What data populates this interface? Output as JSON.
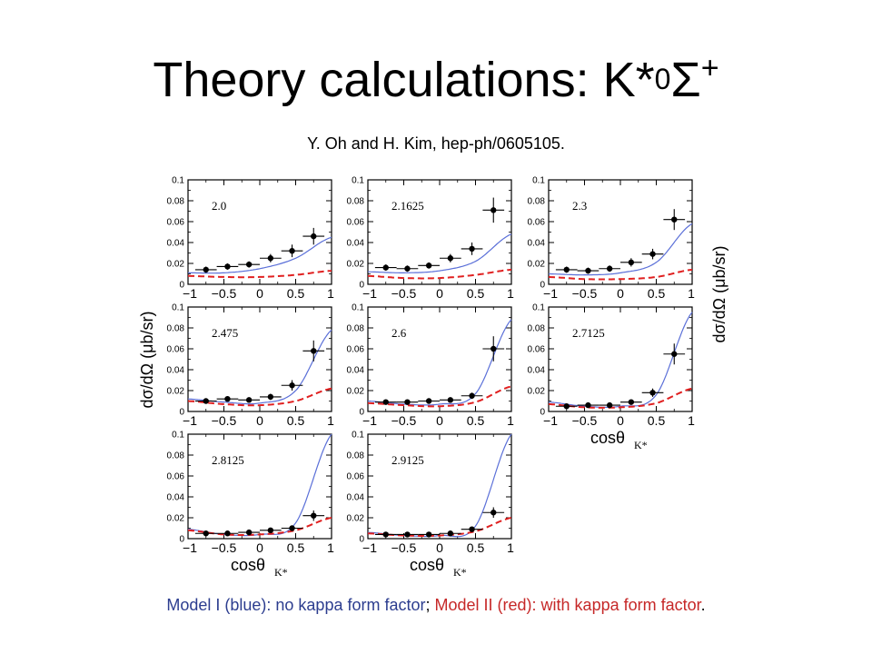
{
  "slide": {
    "title_main": "Theory calculations: K*",
    "title_sup": "0",
    "title_sigma": "Σ",
    "title_plus": "+",
    "citation": "Y. Oh and H. Kim, hep-ph/0605105.",
    "caption": {
      "part1": "Model I (blue): no kappa form factor",
      "sep": ";",
      "part2": "Model II (red): with kappa form factor",
      "end": "."
    }
  },
  "colors": {
    "model_I": "#5a6fd8",
    "model_II": "#e02020",
    "points": "#000000"
  },
  "axis_labels": {
    "y_left": "dσ/dΩ  (μb/sr)",
    "y_right": "dσ/dΩ  (μb/sr)",
    "x": "cosθ",
    "x_sub": "K*"
  },
  "chart_data": [
    {
      "type": "scatter",
      "label": "2.0",
      "xlim": [
        -1,
        1
      ],
      "ylim": [
        0,
        0.1
      ],
      "x_ticks": [
        "-1",
        "-0.5",
        "0",
        "0.5",
        "1"
      ],
      "y_ticks": [
        "0",
        "0.02",
        "0.04",
        "0.06",
        "0.08",
        "0.1"
      ],
      "points": {
        "x": [
          -0.75,
          -0.45,
          -0.15,
          0.15,
          0.45,
          0.75
        ],
        "y": [
          0.014,
          0.017,
          0.019,
          0.025,
          0.032,
          0.046
        ],
        "yerr": [
          0.003,
          0.003,
          0.003,
          0.004,
          0.006,
          0.008
        ]
      },
      "model_I": {
        "x": [
          -1,
          -0.5,
          0,
          0.5,
          1
        ],
        "y": [
          0.011,
          0.011,
          0.015,
          0.025,
          0.045
        ]
      },
      "model_II": {
        "x": [
          -1,
          -0.5,
          0,
          0.5,
          1
        ],
        "y": [
          0.008,
          0.007,
          0.007,
          0.009,
          0.013
        ]
      }
    },
    {
      "type": "scatter",
      "label": "2.1625",
      "xlim": [
        -1,
        1
      ],
      "ylim": [
        0,
        0.1
      ],
      "x_ticks": [
        "-1",
        "-0.5",
        "0",
        "0.5",
        "1"
      ],
      "y_ticks": [
        "0",
        "0.02",
        "0.04",
        "0.06",
        "0.08",
        "0.1"
      ],
      "points": {
        "x": [
          -0.75,
          -0.45,
          -0.15,
          0.15,
          0.45,
          0.75
        ],
        "y": [
          0.016,
          0.015,
          0.018,
          0.025,
          0.034,
          0.071
        ],
        "yerr": [
          0.003,
          0.003,
          0.003,
          0.004,
          0.006,
          0.012
        ]
      },
      "model_I": {
        "x": [
          -1,
          -0.5,
          0,
          0.5,
          1
        ],
        "y": [
          0.012,
          0.011,
          0.013,
          0.022,
          0.048
        ]
      },
      "model_II": {
        "x": [
          -1,
          -0.5,
          0,
          0.5,
          1
        ],
        "y": [
          0.008,
          0.006,
          0.006,
          0.009,
          0.014
        ]
      }
    },
    {
      "type": "scatter",
      "label": "2.3",
      "xlim": [
        -1,
        1
      ],
      "ylim": [
        0,
        0.1
      ],
      "x_ticks": [
        "-1",
        "-0.5",
        "0",
        "0.5",
        "1"
      ],
      "y_ticks": [
        "0",
        "0.02",
        "0.04",
        "0.06",
        "0.08",
        "0.1"
      ],
      "points": {
        "x": [
          -0.75,
          -0.45,
          -0.15,
          0.15,
          0.45,
          0.75
        ],
        "y": [
          0.014,
          0.013,
          0.015,
          0.021,
          0.029,
          0.062
        ],
        "yerr": [
          0.003,
          0.003,
          0.003,
          0.004,
          0.005,
          0.01
        ]
      },
      "model_I": {
        "x": [
          -1,
          -0.5,
          0,
          0.5,
          1
        ],
        "y": [
          0.01,
          0.009,
          0.011,
          0.021,
          0.058
        ]
      },
      "model_II": {
        "x": [
          -1,
          -0.5,
          0,
          0.5,
          1
        ],
        "y": [
          0.007,
          0.005,
          0.005,
          0.007,
          0.014
        ]
      }
    },
    {
      "type": "scatter",
      "label": "2.475",
      "xlim": [
        -1,
        1
      ],
      "ylim": [
        0,
        0.1
      ],
      "x_ticks": [
        "-1",
        "-0.5",
        "0",
        "0.5",
        "1"
      ],
      "y_ticks": [
        "0",
        "0.02",
        "0.04",
        "0.06",
        "0.08",
        "0.1"
      ],
      "points": {
        "x": [
          -0.75,
          -0.45,
          -0.15,
          0.15,
          0.45,
          0.75
        ],
        "y": [
          0.01,
          0.012,
          0.011,
          0.014,
          0.025,
          0.058
        ],
        "yerr": [
          0.002,
          0.002,
          0.002,
          0.003,
          0.005,
          0.01
        ]
      },
      "model_I": {
        "x": [
          -1,
          -0.5,
          0,
          0.5,
          1
        ],
        "y": [
          0.012,
          0.009,
          0.008,
          0.02,
          0.078
        ]
      },
      "model_II": {
        "x": [
          -1,
          -0.5,
          0,
          0.5,
          1
        ],
        "y": [
          0.01,
          0.007,
          0.006,
          0.01,
          0.022
        ]
      }
    },
    {
      "type": "scatter",
      "label": "2.6",
      "xlim": [
        -1,
        1
      ],
      "ylim": [
        0,
        0.1
      ],
      "x_ticks": [
        "-1",
        "-0.5",
        "0",
        "0.5",
        "1"
      ],
      "y_ticks": [
        "0",
        "0.02",
        "0.04",
        "0.06",
        "0.08",
        "0.1"
      ],
      "points": {
        "x": [
          -0.75,
          -0.45,
          -0.15,
          0.15,
          0.45,
          0.75
        ],
        "y": [
          0.009,
          0.009,
          0.01,
          0.011,
          0.015,
          0.06
        ],
        "yerr": [
          0.002,
          0.002,
          0.002,
          0.002,
          0.003,
          0.012
        ]
      },
      "model_I": {
        "x": [
          -1,
          -0.5,
          0,
          0.5,
          1
        ],
        "y": [
          0.01,
          0.007,
          0.007,
          0.017,
          0.088
        ]
      },
      "model_II": {
        "x": [
          -1,
          -0.5,
          0,
          0.5,
          1
        ],
        "y": [
          0.008,
          0.006,
          0.005,
          0.009,
          0.024
        ]
      }
    },
    {
      "type": "scatter",
      "label": "2.7125",
      "xlim": [
        -1,
        1
      ],
      "ylim": [
        0,
        0.1
      ],
      "x_ticks": [
        "-1",
        "-0.5",
        "0",
        "0.5",
        "1"
      ],
      "y_ticks": [
        "0",
        "0.02",
        "0.04",
        "0.06",
        "0.08",
        "0.1"
      ],
      "points": {
        "x": [
          -0.75,
          -0.45,
          -0.15,
          0.15,
          0.45,
          0.75
        ],
        "y": [
          0.005,
          0.006,
          0.006,
          0.009,
          0.018,
          0.055
        ],
        "yerr": [
          0.001,
          0.001,
          0.001,
          0.002,
          0.004,
          0.01
        ]
      },
      "model_I": {
        "x": [
          -1,
          -0.5,
          0,
          0.5,
          1
        ],
        "y": [
          0.009,
          0.005,
          0.005,
          0.016,
          0.095
        ]
      },
      "model_II": {
        "x": [
          -1,
          -0.5,
          0,
          0.5,
          1
        ],
        "y": [
          0.007,
          0.004,
          0.004,
          0.008,
          0.022
        ]
      }
    },
    {
      "type": "scatter",
      "label": "2.8125",
      "xlim": [
        -1,
        1
      ],
      "ylim": [
        0,
        0.1
      ],
      "x_ticks": [
        "-1",
        "-0.5",
        "0",
        "0.5",
        "1"
      ],
      "y_ticks": [
        "0",
        "0.02",
        "0.04",
        "0.06",
        "0.08",
        "0.1"
      ],
      "points": {
        "x": [
          -0.75,
          -0.45,
          -0.15,
          0.15,
          0.45,
          0.75
        ],
        "y": [
          0.005,
          0.005,
          0.006,
          0.008,
          0.01,
          0.022
        ],
        "yerr": [
          0.001,
          0.001,
          0.001,
          0.002,
          0.002,
          0.005
        ]
      },
      "model_I": {
        "x": [
          -1,
          -0.5,
          0,
          0.5,
          1
        ],
        "y": [
          0.009,
          0.004,
          0.004,
          0.015,
          0.1
        ]
      },
      "model_II": {
        "x": [
          -1,
          -0.5,
          0,
          0.5,
          1
        ],
        "y": [
          0.008,
          0.004,
          0.004,
          0.008,
          0.02
        ]
      }
    },
    {
      "type": "scatter",
      "label": "2.9125",
      "xlim": [
        -1,
        1
      ],
      "ylim": [
        0,
        0.1
      ],
      "x_ticks": [
        "-1",
        "-0.5",
        "0",
        "0.5",
        "1"
      ],
      "y_ticks": [
        "0",
        "0.02",
        "0.04",
        "0.06",
        "0.08",
        "0.1"
      ],
      "points": {
        "x": [
          -0.75,
          -0.45,
          -0.15,
          0.15,
          0.45,
          0.75
        ],
        "y": [
          0.004,
          0.004,
          0.004,
          0.005,
          0.009,
          0.025
        ],
        "yerr": [
          0.001,
          0.001,
          0.001,
          0.001,
          0.002,
          0.005
        ]
      },
      "model_I": {
        "x": [
          -1,
          -0.5,
          0,
          0.5,
          1
        ],
        "y": [
          0.006,
          0.003,
          0.003,
          0.012,
          0.1
        ]
      },
      "model_II": {
        "x": [
          -1,
          -0.5,
          0,
          0.5,
          1
        ],
        "y": [
          0.005,
          0.003,
          0.003,
          0.007,
          0.02
        ]
      }
    }
  ]
}
